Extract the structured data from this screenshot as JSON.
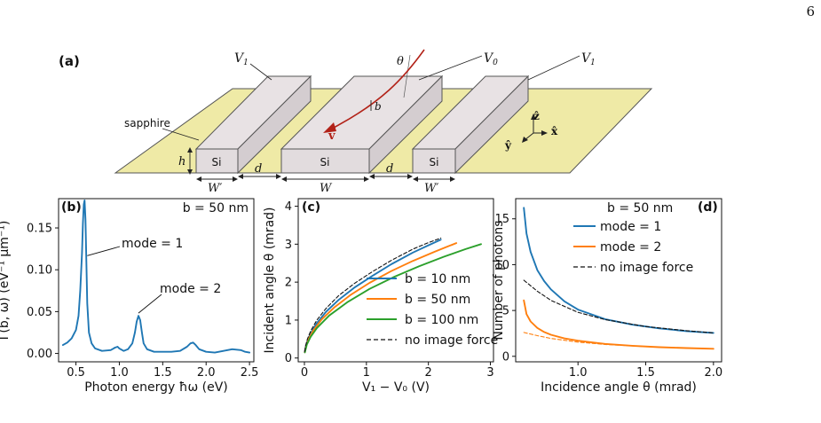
{
  "page_number": "6",
  "panel_a": {
    "label": "(a)",
    "terminal_v1_left": "V",
    "terminal_v1_left_sub": "1",
    "terminal_v0": "V",
    "terminal_v0_sub": "0",
    "terminal_v1_right": "V",
    "terminal_v1_right_sub": "1",
    "angle_label": "θ",
    "impact_label": "b",
    "velocity_label": "v",
    "substrate_label": "sapphire",
    "block_material": "Si",
    "height_label": "h",
    "gap_label": "d",
    "width_center_label": "W",
    "width_side_label": "W′",
    "axis_z": "ẑ",
    "axis_x": "x̂",
    "axis_y": "ŷ",
    "colors": {
      "substrate": "#efeaa6",
      "block_top": "#e8e2e4",
      "block_front": "#e2dcde",
      "block_side": "#d4cdd0",
      "trajectory": "#b22218"
    }
  },
  "chart_data": [
    {
      "panel": "b",
      "type": "line",
      "label": "(b)",
      "annotation": "b = 50 nm",
      "xlabel": "Photon energy ħω (eV)",
      "ylabel": "Γ(b, ω) (eV⁻¹ μm⁻¹)",
      "xlim": [
        0.3,
        2.55
      ],
      "ylim": [
        -0.01,
        0.185
      ],
      "xticks": [
        "0.5",
        "1.0",
        "1.5",
        "2.0",
        "2.5"
      ],
      "xtick_values": [
        0.5,
        1.0,
        1.5,
        2.0,
        2.5
      ],
      "yticks": [
        "0.00",
        "0.05",
        "0.10",
        "0.15"
      ],
      "ytick_values": [
        0.0,
        0.05,
        0.1,
        0.15
      ],
      "annotations": [
        {
          "text": "mode = 1",
          "point": [
            0.6,
            0.12
          ]
        },
        {
          "text": "mode = 2",
          "point": [
            1.22,
            0.045
          ]
        }
      ],
      "series": [
        {
          "color": "#1f77b4",
          "x": [
            0.35,
            0.4,
            0.45,
            0.5,
            0.53,
            0.55,
            0.57,
            0.58,
            0.59,
            0.6,
            0.61,
            0.62,
            0.63,
            0.65,
            0.68,
            0.72,
            0.8,
            0.9,
            0.95,
            0.98,
            1.0,
            1.05,
            1.1,
            1.15,
            1.18,
            1.2,
            1.22,
            1.24,
            1.26,
            1.28,
            1.32,
            1.4,
            1.5,
            1.6,
            1.7,
            1.78,
            1.82,
            1.85,
            1.88,
            1.92,
            2.0,
            2.1,
            2.2,
            2.3,
            2.4,
            2.45,
            2.5
          ],
          "y": [
            0.01,
            0.013,
            0.018,
            0.028,
            0.045,
            0.075,
            0.12,
            0.155,
            0.178,
            0.183,
            0.16,
            0.11,
            0.06,
            0.025,
            0.012,
            0.006,
            0.003,
            0.004,
            0.007,
            0.008,
            0.006,
            0.003,
            0.005,
            0.012,
            0.025,
            0.038,
            0.045,
            0.04,
            0.025,
            0.012,
            0.005,
            0.002,
            0.002,
            0.002,
            0.003,
            0.008,
            0.012,
            0.013,
            0.01,
            0.005,
            0.002,
            0.001,
            0.003,
            0.005,
            0.004,
            0.002,
            0.001
          ]
        }
      ]
    },
    {
      "panel": "c",
      "type": "line",
      "label": "(c)",
      "xlabel": "V₁ − V₀ (V)",
      "ylabel": "Incident angle θ (mrad)",
      "xlim": [
        -0.1,
        3.05
      ],
      "ylim": [
        -0.1,
        4.2
      ],
      "xticks": [
        "0",
        "1",
        "2",
        "3"
      ],
      "xtick_values": [
        0,
        1,
        2,
        3
      ],
      "yticks": [
        "0",
        "1",
        "2",
        "3",
        "4"
      ],
      "ytick_values": [
        0,
        1,
        2,
        3,
        4
      ],
      "legend_position": "bottom-right",
      "series": [
        {
          "name": "b = 10 nm",
          "color": "#1f77b4",
          "style": "solid",
          "x": [
            0.005,
            0.02,
            0.05,
            0.1,
            0.2,
            0.35,
            0.55,
            0.8,
            1.1,
            1.4,
            1.75,
            2.0,
            2.2
          ],
          "y": [
            0.15,
            0.3,
            0.46,
            0.65,
            0.92,
            1.22,
            1.53,
            1.85,
            2.17,
            2.47,
            2.78,
            2.97,
            3.12
          ]
        },
        {
          "name": "b = 50 nm",
          "color": "#ff7f0e",
          "style": "solid",
          "x": [
            0.006,
            0.03,
            0.07,
            0.14,
            0.28,
            0.48,
            0.75,
            1.05,
            1.4,
            1.75,
            2.1,
            2.3,
            2.45
          ],
          "y": [
            0.15,
            0.34,
            0.51,
            0.72,
            1.02,
            1.33,
            1.67,
            1.98,
            2.29,
            2.56,
            2.8,
            2.93,
            3.03
          ]
        },
        {
          "name": "b = 100 nm",
          "color": "#2ca02c",
          "style": "solid",
          "x": [
            0.008,
            0.04,
            0.1,
            0.2,
            0.4,
            0.7,
            1.05,
            1.45,
            1.85,
            2.25,
            2.6,
            2.85
          ],
          "y": [
            0.15,
            0.36,
            0.56,
            0.79,
            1.12,
            1.48,
            1.82,
            2.14,
            2.42,
            2.67,
            2.87,
            3.0
          ]
        },
        {
          "name": "no image force",
          "color": "#111111",
          "style": "dashed",
          "x": [
            0.005,
            0.02,
            0.05,
            0.1,
            0.2,
            0.35,
            0.55,
            0.8,
            1.1,
            1.4,
            1.75,
            2.0,
            2.2
          ],
          "y": [
            0.17,
            0.33,
            0.51,
            0.71,
            1.0,
            1.31,
            1.64,
            1.96,
            2.28,
            2.57,
            2.87,
            3.04,
            3.16
          ]
        }
      ]
    },
    {
      "panel": "d",
      "type": "line",
      "label": "(d)",
      "annotation": "b = 50 nm",
      "xlabel": "Incidence angle θ (mrad)",
      "ylabel": "Number of photons",
      "xlim": [
        0.54,
        2.06
      ],
      "ylim": [
        -0.6,
        17.2
      ],
      "xticks": [
        "1.0",
        "1.5",
        "2.0"
      ],
      "xtick_values": [
        1.0,
        1.5,
        2.0
      ],
      "yticks": [
        "0",
        "5",
        "10",
        "15"
      ],
      "ytick_values": [
        0,
        5,
        10,
        15
      ],
      "legend_position": "top-right",
      "series": [
        {
          "name": "mode = 1",
          "color": "#1f77b4",
          "style": "solid",
          "x": [
            0.6,
            0.62,
            0.65,
            0.7,
            0.75,
            0.8,
            0.9,
            1.0,
            1.2,
            1.4,
            1.6,
            1.8,
            2.0
          ],
          "y": [
            16.2,
            13.4,
            11.4,
            9.4,
            8.2,
            7.3,
            6.0,
            5.1,
            4.05,
            3.45,
            3.05,
            2.75,
            2.55
          ]
        },
        {
          "name": "mode = 2",
          "color": "#ff7f0e",
          "style": "solid",
          "x": [
            0.6,
            0.62,
            0.65,
            0.7,
            0.75,
            0.8,
            0.9,
            1.0,
            1.2,
            1.4,
            1.6,
            1.8,
            2.0
          ],
          "y": [
            6.1,
            4.6,
            3.8,
            3.1,
            2.65,
            2.35,
            1.95,
            1.7,
            1.35,
            1.15,
            1.0,
            0.9,
            0.82
          ]
        },
        {
          "name": "no image force",
          "color": "#111111",
          "style": "dashed",
          "x": [
            0.6,
            0.7,
            0.8,
            1.0,
            1.2,
            1.5,
            1.8,
            2.0
          ],
          "y": [
            8.3,
            7.1,
            6.1,
            4.8,
            4.0,
            3.25,
            2.8,
            2.55
          ]
        },
        {
          "name": "",
          "color": "#ff7f0e",
          "style": "dashed",
          "x": [
            0.6,
            0.7,
            0.8,
            1.0,
            1.2,
            1.5,
            1.8,
            2.0
          ],
          "y": [
            2.6,
            2.25,
            1.95,
            1.55,
            1.3,
            1.05,
            0.9,
            0.8
          ]
        }
      ]
    }
  ]
}
